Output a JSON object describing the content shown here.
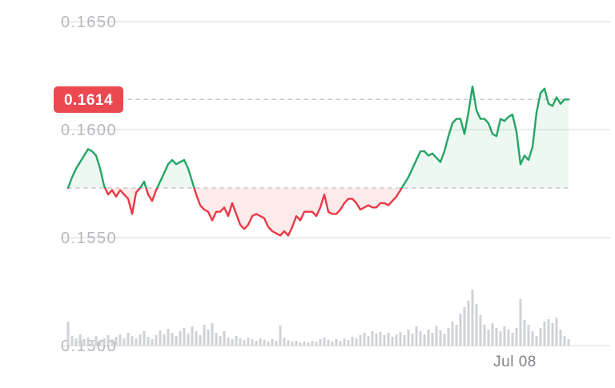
{
  "colors": {
    "background": "#ffffff",
    "up_color": "#24a564",
    "down_color": "#ea3943",
    "up_fill": "rgba(36,165,100,0.08)",
    "down_fill": "rgba(234,57,67,0.10)",
    "badge_bg": "#ec4850",
    "grid_line": "#e4e5e7",
    "dashed_line": "#c7c9cc",
    "axis_label": "#b5b8bd",
    "date_label": "#7f8388",
    "volume_bar": "#cfd2d6"
  },
  "chart_data": {
    "type": "line",
    "subtype": "price-sparkline-with-volume",
    "title": "",
    "current_price": 0.1614,
    "current_price_label": "0.1614",
    "previous_close_baseline": 0.1573,
    "y_axis": {
      "ticks": [
        0.165,
        0.16,
        0.155,
        0.15
      ],
      "labels": [
        "0.1650",
        "0.1600",
        "0.1550",
        "0.1500"
      ],
      "range": [
        0.15,
        0.166
      ],
      "grid": true
    },
    "x_axis": {
      "tick_labels": [
        "Jul 08"
      ],
      "tick_position_fraction": 0.893
    },
    "legend": "none",
    "price_series": [
      0.1573,
      0.1578,
      0.1582,
      0.1585,
      0.1588,
      0.1591,
      0.159,
      0.1588,
      0.1582,
      0.1574,
      0.157,
      0.1572,
      0.1569,
      0.1572,
      0.157,
      0.1568,
      0.1561,
      0.1571,
      0.1573,
      0.1576,
      0.157,
      0.1567,
      0.1572,
      0.1576,
      0.158,
      0.1584,
      0.1586,
      0.1584,
      0.1585,
      0.1586,
      0.1582,
      0.1576,
      0.157,
      0.1565,
      0.1563,
      0.1562,
      0.1558,
      0.1562,
      0.1562,
      0.1564,
      0.156,
      0.1566,
      0.1561,
      0.1556,
      0.1554,
      0.1556,
      0.156,
      0.1561,
      0.156,
      0.1559,
      0.1555,
      0.1553,
      0.1552,
      0.1551,
      0.1553,
      0.1551,
      0.1555,
      0.156,
      0.1558,
      0.1562,
      0.1562,
      0.1562,
      0.156,
      0.1564,
      0.157,
      0.1562,
      0.1561,
      0.1561,
      0.1563,
      0.1566,
      0.1568,
      0.1568,
      0.1566,
      0.1563,
      0.1564,
      0.1565,
      0.1564,
      0.1564,
      0.1566,
      0.1566,
      0.1565,
      0.1567,
      0.1569,
      0.1572,
      0.1575,
      0.1578,
      0.1582,
      0.1586,
      0.159,
      0.159,
      0.1588,
      0.1589,
      0.1587,
      0.1585,
      0.159,
      0.1597,
      0.1603,
      0.1605,
      0.1605,
      0.1598,
      0.1608,
      0.162,
      0.1609,
      0.1605,
      0.1605,
      0.1603,
      0.1598,
      0.1597,
      0.1605,
      0.1604,
      0.1606,
      0.1607,
      0.1599,
      0.1584,
      0.1588,
      0.1586,
      0.1592,
      0.1608,
      0.1617,
      0.1619,
      0.1612,
      0.1611,
      0.1615,
      0.1612,
      0.1614,
      0.1614
    ],
    "volume_series_relative": [
      30,
      12,
      9,
      14,
      8,
      10,
      7,
      12,
      6,
      9,
      13,
      8,
      11,
      14,
      9,
      16,
      12,
      9,
      14,
      18,
      11,
      8,
      13,
      19,
      14,
      21,
      16,
      12,
      18,
      22,
      15,
      24,
      18,
      13,
      26,
      20,
      28,
      16,
      12,
      18,
      10,
      8,
      12,
      9,
      7,
      10,
      8,
      6,
      9,
      7,
      5,
      8,
      6,
      25,
      10,
      7,
      5,
      6,
      4,
      5,
      4,
      6,
      5,
      8,
      10,
      7,
      5,
      8,
      6,
      9,
      7,
      11,
      9,
      13,
      16,
      12,
      18,
      15,
      17,
      13,
      16,
      11,
      14,
      17,
      13,
      20,
      15,
      24,
      18,
      14,
      20,
      16,
      25,
      19,
      15,
      22,
      30,
      26,
      40,
      48,
      56,
      70,
      52,
      38,
      26,
      20,
      28,
      22,
      18,
      24,
      20,
      16,
      22,
      58,
      32,
      26,
      18,
      12,
      22,
      30,
      33,
      28,
      35,
      20,
      12,
      8
    ],
    "volume_unit": "relative (max = 70)"
  }
}
